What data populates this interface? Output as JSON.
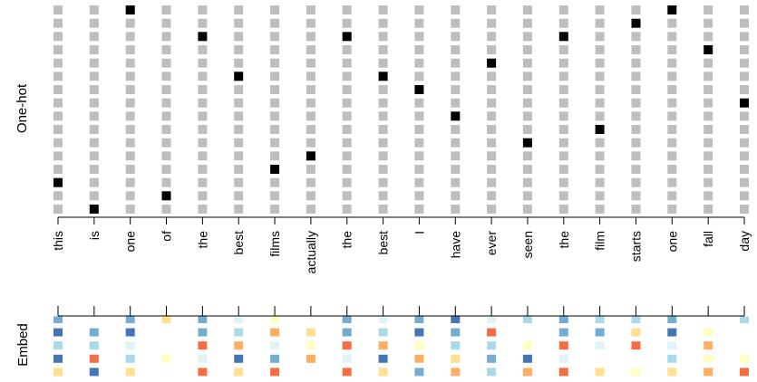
{
  "chart_data": [
    {
      "type": "heatmap",
      "name": "one-hot",
      "ylabel": "One-hot",
      "categories": [
        "this",
        "is",
        "one",
        "of",
        "the",
        "best",
        "films",
        "actually",
        "the",
        "best",
        "I",
        "have",
        "ever",
        "seen",
        "the",
        "film",
        "starts",
        "one",
        "fall",
        "day"
      ],
      "n_rows": 16,
      "row_order": "top-to-bottom",
      "hot_row_index": [
        13,
        15,
        0,
        14,
        2,
        5,
        12,
        11,
        2,
        5,
        6,
        8,
        4,
        10,
        2,
        9,
        1,
        0,
        3,
        7
      ],
      "colors": {
        "off": "#bebebe",
        "on": "#000000"
      }
    },
    {
      "type": "heatmap",
      "name": "embed",
      "ylabel": "Embed",
      "categories": [
        "this",
        "is",
        "one",
        "of",
        "the",
        "best",
        "films",
        "actually",
        "the",
        "best",
        "I",
        "have",
        "ever",
        "seen",
        "the",
        "film",
        "starts",
        "one",
        "fall",
        "day"
      ],
      "n_rows": 5,
      "row_order": "top-to-bottom",
      "palette": {
        "db": "#4575b4",
        "mb": "#74add1",
        "lb": "#abd9e9",
        "vl": "#e0f3f8",
        "ly": "#ffffbf",
        "lo": "#fee090",
        "or": "#fdae61",
        "ro": "#f46d43",
        "w": "#ffffff"
      },
      "cells": [
        [
          "mb",
          "db",
          "lb",
          "db",
          "lo"
        ],
        [
          "w",
          "mb",
          "lb",
          "ro",
          "db"
        ],
        [
          "mb",
          "db",
          "vl",
          "lb",
          "lo"
        ],
        [
          "lo",
          "w",
          "w",
          "ly",
          "w"
        ],
        [
          "mb",
          "mb",
          "ro",
          "vl",
          "ro"
        ],
        [
          "vl",
          "lb",
          "or",
          "db",
          "lo"
        ],
        [
          "ly",
          "or",
          "vl",
          "mb",
          "ro"
        ],
        [
          "w",
          "lo",
          "ly",
          "or",
          "w"
        ],
        [
          "mb",
          "mb",
          "ro",
          "vl",
          "ro"
        ],
        [
          "vl",
          "lb",
          "or",
          "db",
          "lo"
        ],
        [
          "mb",
          "db",
          "ly",
          "or",
          "mb"
        ],
        [
          "db",
          "mb",
          "lb",
          "lo",
          "or"
        ],
        [
          "vl",
          "ro",
          "lb",
          "mb",
          "lb"
        ],
        [
          "lb",
          "w",
          "ly",
          "db",
          "or"
        ],
        [
          "mb",
          "mb",
          "ro",
          "vl",
          "ro"
        ],
        [
          "lb",
          "mb",
          "vl",
          "w",
          "lo"
        ],
        [
          "lb",
          "lo",
          "ro",
          "w",
          "ly"
        ],
        [
          "mb",
          "db",
          "vl",
          "lb",
          "lo"
        ],
        [
          "w",
          "ly",
          "or",
          "ly",
          "or"
        ],
        [
          "lb",
          "w",
          "w",
          "ly",
          "ro"
        ]
      ]
    }
  ]
}
